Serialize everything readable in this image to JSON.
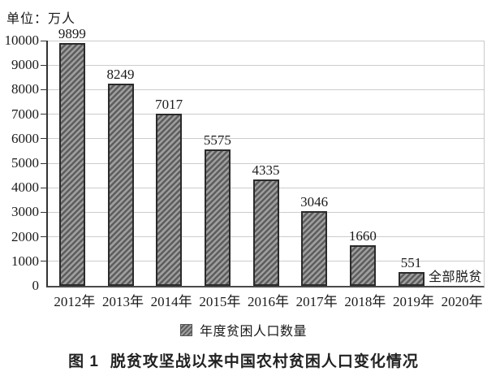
{
  "unit_label": "单位：万人",
  "legend": {
    "label": "年度贫困人口数量"
  },
  "caption": {
    "fig_no": "图 1",
    "text": "脱贫攻坚战以来中国农村贫困人口变化情况"
  },
  "chart_data": {
    "type": "bar",
    "title": "图 1 脱贫攻坚战以来中国农村贫困人口变化情况",
    "unit": "万人",
    "unit_label": "单位：万人",
    "categories": [
      "2012年",
      "2013年",
      "2014年",
      "2015年",
      "2016年",
      "2017年",
      "2018年",
      "2019年",
      "2020年"
    ],
    "values": [
      9899,
      8249,
      7017,
      5575,
      4335,
      3046,
      1660,
      551,
      0
    ],
    "bar_labels": [
      "9899",
      "8249",
      "7017",
      "5575",
      "4335",
      "3046",
      "1660",
      "551",
      "全部脱贫"
    ],
    "zero_annotation": "全部脱贫",
    "series_name": "年度贫困人口数量",
    "xlabel": "",
    "ylabel": "万人",
    "ylim": [
      0,
      10000
    ],
    "ytick_step": 1000,
    "yticks": [
      0,
      1000,
      2000,
      3000,
      4000,
      5000,
      6000,
      7000,
      8000,
      9000,
      10000
    ],
    "grid": true,
    "legend_position": "bottom",
    "hatch": "diagonal-forward",
    "colors": {
      "bar_fill": "#9e9e9e",
      "bar_hatch": "#5d5d5d",
      "bar_border": "#2b2b2b",
      "gridline": "#cccccc",
      "axis": "#333333",
      "text": "#1a1a1a"
    }
  }
}
